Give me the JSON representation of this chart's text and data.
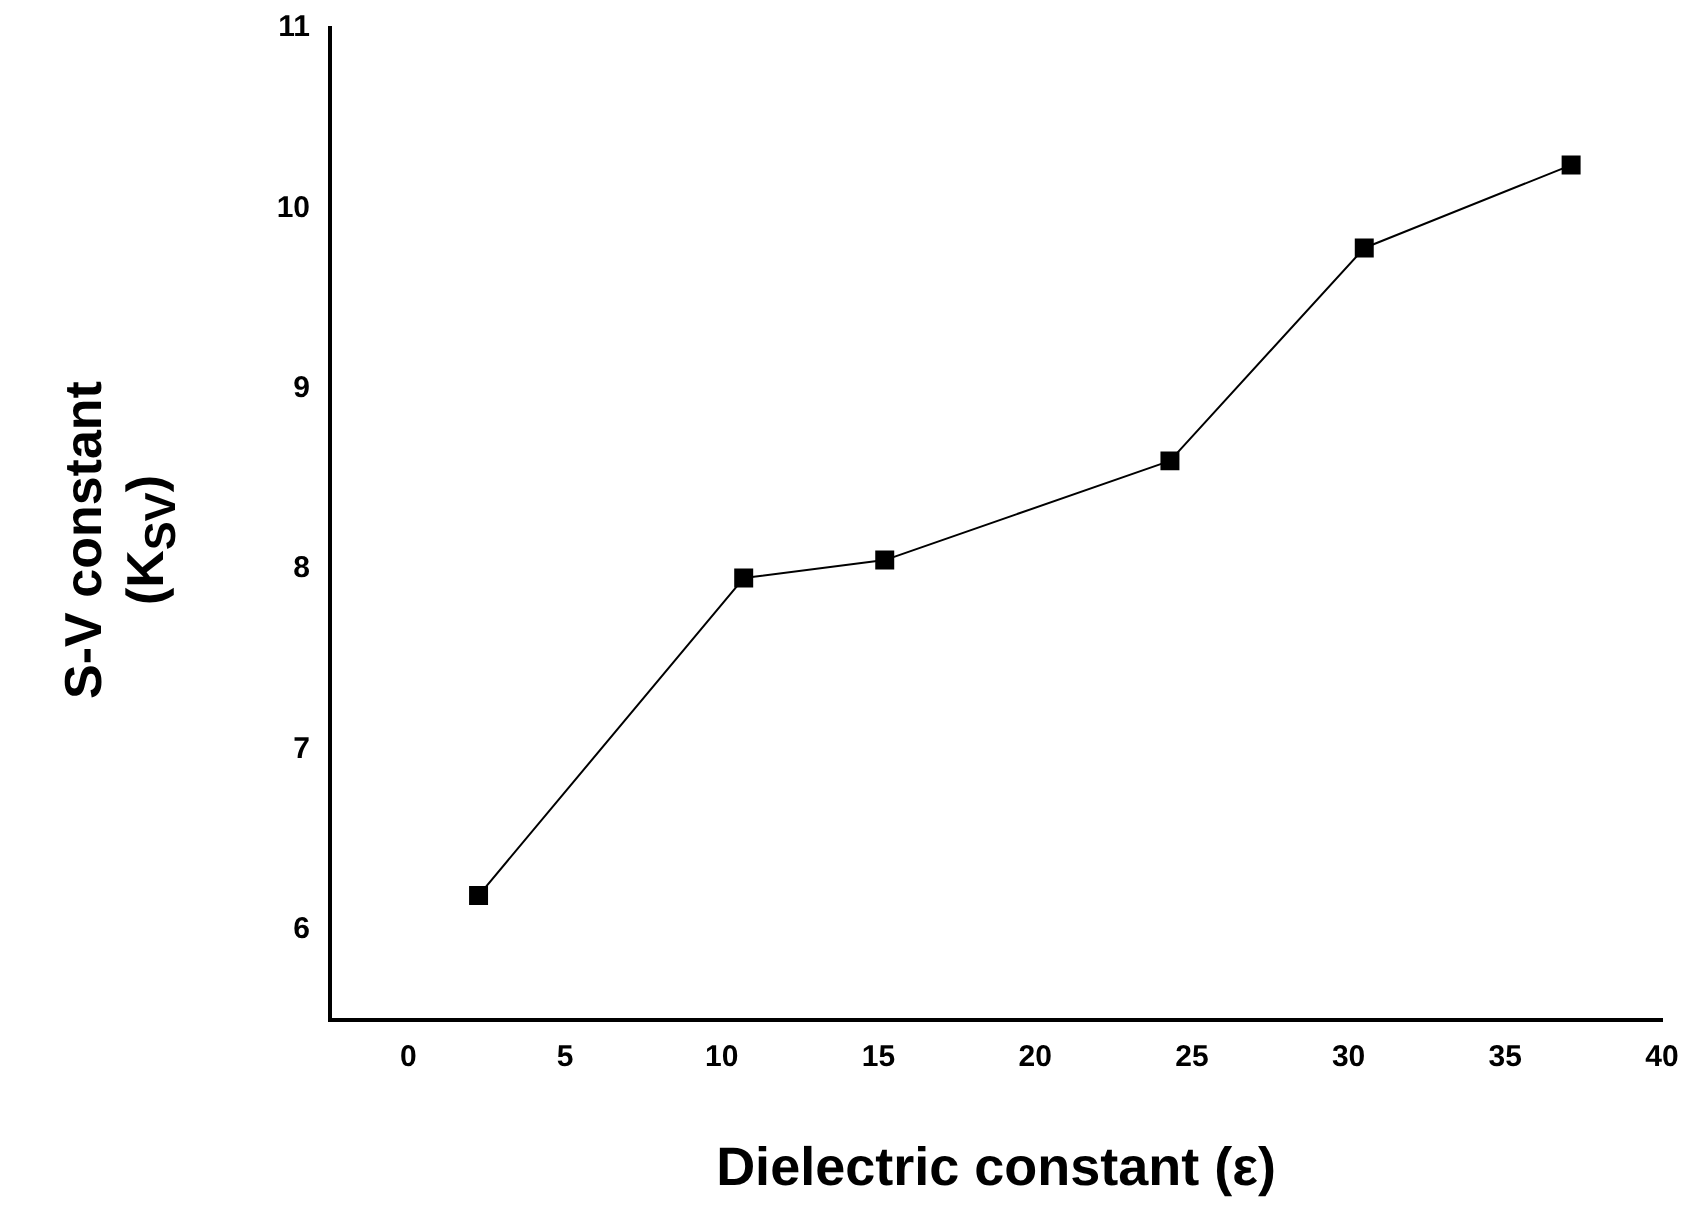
{
  "chart_data": {
    "type": "line",
    "xlabel": "Dielectric constant (ε)",
    "ylabel": "S-V constant\n(K$_{SV}$)",
    "x": [
      2.24,
      10.7,
      15.2,
      24.3,
      30.5,
      37.1
    ],
    "series": [
      {
        "color": "#000000",
        "values": [
          6.19,
          7.95,
          8.05,
          8.6,
          9.78,
          10.24
        ]
      }
    ],
    "xlim": [
      -2.5,
      40
    ],
    "xticks": [
      0,
      5,
      10,
      15,
      20,
      25,
      30,
      35,
      40
    ],
    "ylim": [
      5.5,
      11
    ],
    "yticks": [
      6,
      7,
      8,
      9,
      10,
      11
    ],
    "grid": false,
    "legend": false,
    "marker": "square",
    "line_style": "solid"
  }
}
